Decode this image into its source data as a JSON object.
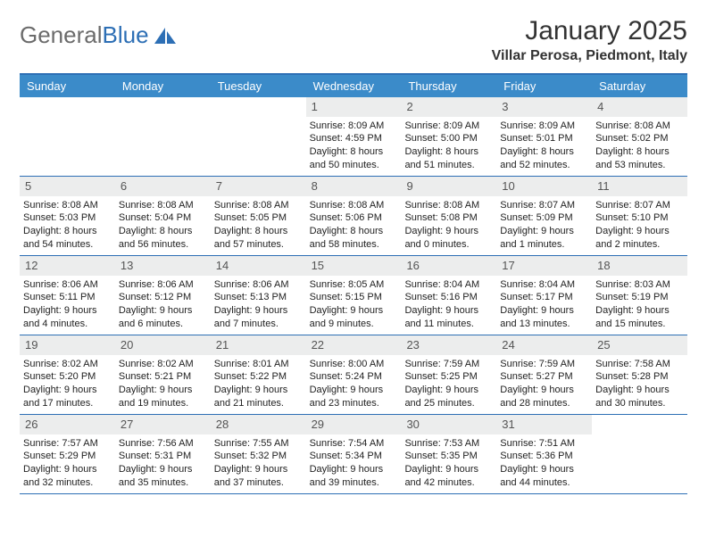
{
  "logo": {
    "text1": "General",
    "text2": "Blue"
  },
  "title": "January 2025",
  "location": "Villar Perosa, Piedmont, Italy",
  "colors": {
    "header_bg": "#3b8bc9",
    "header_text": "#ffffff",
    "line": "#2d6fb5",
    "daynum_bg": "#eceded",
    "logo_gray": "#6b6b6b",
    "logo_blue": "#2d6fb5"
  },
  "weekdays": [
    "Sunday",
    "Monday",
    "Tuesday",
    "Wednesday",
    "Thursday",
    "Friday",
    "Saturday"
  ],
  "first_weekday_index": 3,
  "days": [
    {
      "n": "1",
      "sunrise": "8:09 AM",
      "sunset": "4:59 PM",
      "dayh": "8",
      "daym": "50"
    },
    {
      "n": "2",
      "sunrise": "8:09 AM",
      "sunset": "5:00 PM",
      "dayh": "8",
      "daym": "51"
    },
    {
      "n": "3",
      "sunrise": "8:09 AM",
      "sunset": "5:01 PM",
      "dayh": "8",
      "daym": "52"
    },
    {
      "n": "4",
      "sunrise": "8:08 AM",
      "sunset": "5:02 PM",
      "dayh": "8",
      "daym": "53"
    },
    {
      "n": "5",
      "sunrise": "8:08 AM",
      "sunset": "5:03 PM",
      "dayh": "8",
      "daym": "54"
    },
    {
      "n": "6",
      "sunrise": "8:08 AM",
      "sunset": "5:04 PM",
      "dayh": "8",
      "daym": "56"
    },
    {
      "n": "7",
      "sunrise": "8:08 AM",
      "sunset": "5:05 PM",
      "dayh": "8",
      "daym": "57"
    },
    {
      "n": "8",
      "sunrise": "8:08 AM",
      "sunset": "5:06 PM",
      "dayh": "8",
      "daym": "58"
    },
    {
      "n": "9",
      "sunrise": "8:08 AM",
      "sunset": "5:08 PM",
      "dayh": "9",
      "daym": "0"
    },
    {
      "n": "10",
      "sunrise": "8:07 AM",
      "sunset": "5:09 PM",
      "dayh": "9",
      "daym": "1"
    },
    {
      "n": "11",
      "sunrise": "8:07 AM",
      "sunset": "5:10 PM",
      "dayh": "9",
      "daym": "2"
    },
    {
      "n": "12",
      "sunrise": "8:06 AM",
      "sunset": "5:11 PM",
      "dayh": "9",
      "daym": "4"
    },
    {
      "n": "13",
      "sunrise": "8:06 AM",
      "sunset": "5:12 PM",
      "dayh": "9",
      "daym": "6"
    },
    {
      "n": "14",
      "sunrise": "8:06 AM",
      "sunset": "5:13 PM",
      "dayh": "9",
      "daym": "7"
    },
    {
      "n": "15",
      "sunrise": "8:05 AM",
      "sunset": "5:15 PM",
      "dayh": "9",
      "daym": "9"
    },
    {
      "n": "16",
      "sunrise": "8:04 AM",
      "sunset": "5:16 PM",
      "dayh": "9",
      "daym": "11"
    },
    {
      "n": "17",
      "sunrise": "8:04 AM",
      "sunset": "5:17 PM",
      "dayh": "9",
      "daym": "13"
    },
    {
      "n": "18",
      "sunrise": "8:03 AM",
      "sunset": "5:19 PM",
      "dayh": "9",
      "daym": "15"
    },
    {
      "n": "19",
      "sunrise": "8:02 AM",
      "sunset": "5:20 PM",
      "dayh": "9",
      "daym": "17"
    },
    {
      "n": "20",
      "sunrise": "8:02 AM",
      "sunset": "5:21 PM",
      "dayh": "9",
      "daym": "19"
    },
    {
      "n": "21",
      "sunrise": "8:01 AM",
      "sunset": "5:22 PM",
      "dayh": "9",
      "daym": "21"
    },
    {
      "n": "22",
      "sunrise": "8:00 AM",
      "sunset": "5:24 PM",
      "dayh": "9",
      "daym": "23"
    },
    {
      "n": "23",
      "sunrise": "7:59 AM",
      "sunset": "5:25 PM",
      "dayh": "9",
      "daym": "25"
    },
    {
      "n": "24",
      "sunrise": "7:59 AM",
      "sunset": "5:27 PM",
      "dayh": "9",
      "daym": "28"
    },
    {
      "n": "25",
      "sunrise": "7:58 AM",
      "sunset": "5:28 PM",
      "dayh": "9",
      "daym": "30"
    },
    {
      "n": "26",
      "sunrise": "7:57 AM",
      "sunset": "5:29 PM",
      "dayh": "9",
      "daym": "32"
    },
    {
      "n": "27",
      "sunrise": "7:56 AM",
      "sunset": "5:31 PM",
      "dayh": "9",
      "daym": "35"
    },
    {
      "n": "28",
      "sunrise": "7:55 AM",
      "sunset": "5:32 PM",
      "dayh": "9",
      "daym": "37"
    },
    {
      "n": "29",
      "sunrise": "7:54 AM",
      "sunset": "5:34 PM",
      "dayh": "9",
      "daym": "39"
    },
    {
      "n": "30",
      "sunrise": "7:53 AM",
      "sunset": "5:35 PM",
      "dayh": "9",
      "daym": "42"
    },
    {
      "n": "31",
      "sunrise": "7:51 AM",
      "sunset": "5:36 PM",
      "dayh": "9",
      "daym": "44"
    }
  ],
  "labels": {
    "sunrise": "Sunrise:",
    "sunset": "Sunset:",
    "daylight": "Daylight:",
    "hours": "hours",
    "and": "and",
    "minutes": "minutes."
  }
}
